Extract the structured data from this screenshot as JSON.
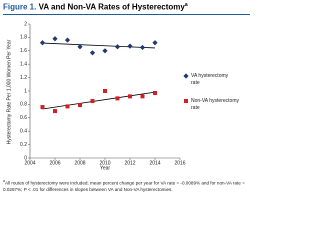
{
  "chart_data": {
    "type": "line",
    "figure_label": "Figure 1.",
    "title": "VA and Non-VA Rates of Hysterectomy",
    "title_mark": "a",
    "x_label": "Year",
    "y_label": "Hysterectomy Rate Per 1,000 Women Per Year",
    "x": [
      2005,
      2006,
      2007,
      2008,
      2009,
      2010,
      2011,
      2012,
      2013,
      2014
    ],
    "series": [
      {
        "name": "VA hysterectomy rate",
        "color": "#1f3a6e",
        "marker": "diamond",
        "values": [
          1.72,
          1.78,
          1.76,
          1.66,
          1.57,
          1.6,
          1.66,
          1.67,
          1.65,
          1.72
        ]
      },
      {
        "name": "Non-VA hysterectomy rate",
        "color": "#d11f2a",
        "marker": "square",
        "values": [
          0.76,
          0.7,
          0.77,
          0.79,
          0.85,
          1.0,
          0.89,
          0.92,
          0.92,
          0.97
        ]
      }
    ],
    "trendline": true,
    "xlim": [
      2004,
      2016
    ],
    "xticks": [
      2004,
      2006,
      2008,
      2010,
      2012,
      2014,
      2016
    ],
    "ylim": [
      0,
      2
    ],
    "yticks": [
      0,
      0.2,
      0.4,
      0.6,
      0.8,
      1,
      1.2,
      1.4,
      1.6,
      1.8,
      2
    ],
    "legend": "right",
    "footnote_mark": "a",
    "footnote": "All routes of hysterectomy were included; mean percent change per year for VA rate = -0.0089% and for non-VA rate = 0.0287%; P < .01 for differences in slopes between VA and Non-VA hysterectomies."
  }
}
